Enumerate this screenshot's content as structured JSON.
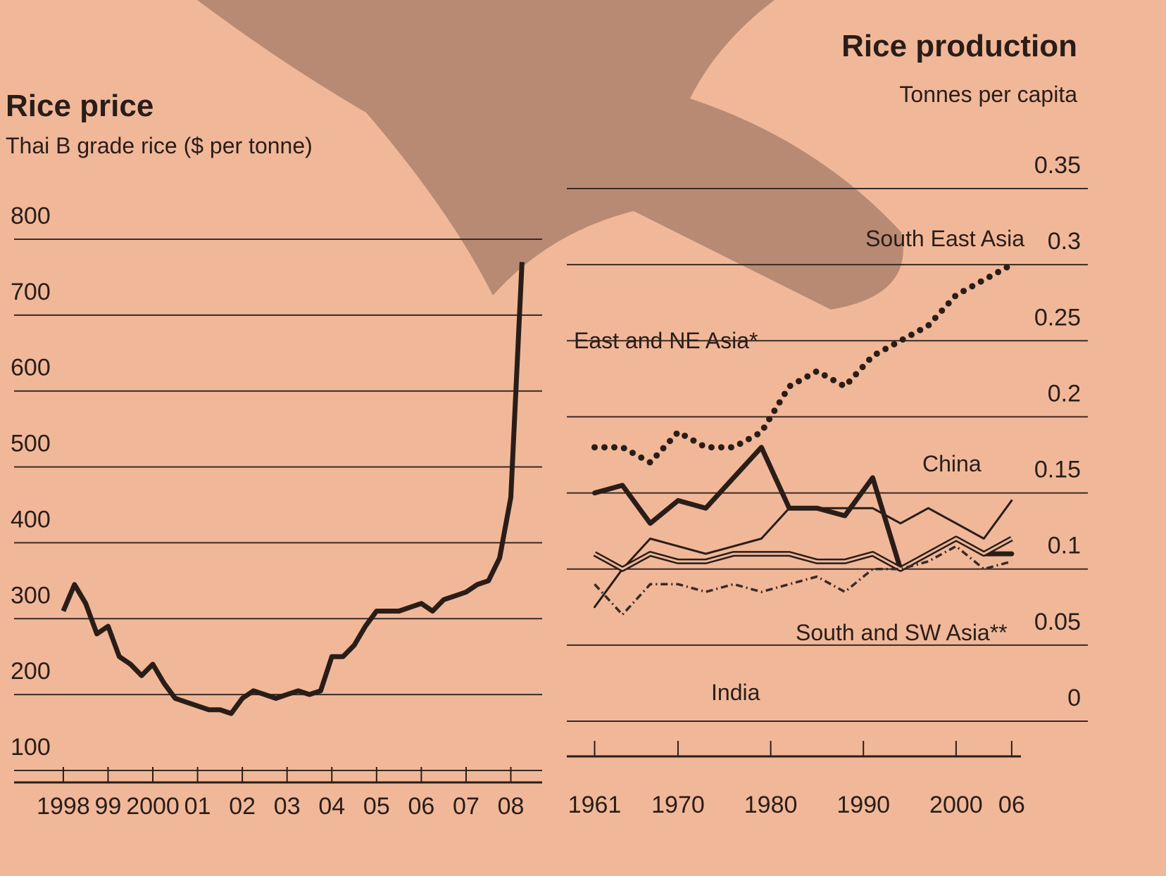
{
  "chart_data": [
    {
      "type": "line",
      "title": "Rice price",
      "subtitle": "Thai B grade rice ($ per tonne)",
      "x": [
        1998.0,
        1998.25,
        1998.5,
        1998.75,
        1999.0,
        1999.25,
        1999.5,
        1999.75,
        2000.0,
        2000.25,
        2000.5,
        2000.75,
        2001.0,
        2001.25,
        2001.5,
        2001.75,
        2002.0,
        2002.25,
        2002.5,
        2002.75,
        2003.0,
        2003.25,
        2003.5,
        2003.75,
        2004.0,
        2004.25,
        2004.5,
        2004.75,
        2005.0,
        2005.25,
        2005.5,
        2005.75,
        2006.0,
        2006.25,
        2006.5,
        2006.75,
        2007.0,
        2007.25,
        2007.5,
        2007.75,
        2008.0,
        2008.25
      ],
      "values": [
        310,
        345,
        320,
        280,
        290,
        250,
        240,
        225,
        240,
        215,
        195,
        190,
        185,
        180,
        180,
        175,
        195,
        205,
        200,
        195,
        200,
        205,
        200,
        205,
        250,
        250,
        265,
        290,
        310,
        310,
        310,
        315,
        320,
        310,
        325,
        330,
        335,
        345,
        350,
        380,
        460,
        770
      ],
      "color": "#2a1d18",
      "xlim": [
        1996.9,
        2008.7
      ],
      "ylim": [
        100,
        800
      ],
      "xticks": [
        1998,
        {
          "value": 1999,
          "label": "99"
        },
        2000,
        {
          "value": 2001,
          "label": "01"
        },
        {
          "value": 2002,
          "label": "02"
        },
        {
          "value": 2003,
          "label": "03"
        },
        {
          "value": 2004,
          "label": "04"
        },
        {
          "value": 2005,
          "label": "05"
        },
        {
          "value": 2006,
          "label": "06"
        },
        {
          "value": 2007,
          "label": "07"
        },
        {
          "value": 2008,
          "label": "08"
        }
      ],
      "yticks": [
        100,
        200,
        300,
        400,
        500,
        600,
        700,
        800
      ],
      "grid": true
    },
    {
      "type": "line",
      "title": "Rice production",
      "subtitle": "Tonnes per capita",
      "x": [
        1961,
        1964,
        1967,
        1970,
        1973,
        1976,
        1979,
        1982,
        1985,
        1988,
        1991,
        1994,
        1997,
        2000,
        2003,
        2006
      ],
      "series": [
        {
          "name": "South East Asia",
          "color": "#2a1d18",
          "style": "dotted",
          "values": [
            0.18,
            0.18,
            0.17,
            0.19,
            0.18,
            0.18,
            0.19,
            0.22,
            0.23,
            0.22,
            0.24,
            0.25,
            0.26,
            0.28,
            0.29,
            0.3
          ]
        },
        {
          "name": "East and NE Asia*",
          "color": "#2a1d18",
          "style": "thick",
          "values": [
            0.15,
            0.155,
            0.13,
            0.145,
            0.14,
            0.16,
            0.18,
            0.14,
            0.14,
            0.135,
            0.16,
            0.1,
            0.11,
            0.12,
            0.11,
            0.11
          ]
        },
        {
          "name": "China",
          "color": "#2a1d18",
          "style": "thin",
          "values": [
            0.075,
            0.1,
            0.12,
            0.115,
            0.11,
            0.115,
            0.12,
            0.14,
            0.14,
            0.14,
            0.14,
            0.13,
            0.14,
            0.13,
            0.12,
            0.145
          ]
        },
        {
          "name": "India",
          "color": "#2a1d18",
          "style": "double",
          "values": [
            0.11,
            0.1,
            0.11,
            0.105,
            0.105,
            0.11,
            0.11,
            0.11,
            0.105,
            0.105,
            0.11,
            0.1,
            0.11,
            0.12,
            0.11,
            0.12
          ]
        },
        {
          "name": "South and SW Asia**",
          "color": "#3a2a24",
          "style": "dashdot",
          "values": [
            0.09,
            0.07,
            0.09,
            0.09,
            0.085,
            0.09,
            0.085,
            0.09,
            0.095,
            0.085,
            0.1,
            0.1,
            0.105,
            0.115,
            0.1,
            0.105
          ]
        }
      ],
      "xlim": [
        1958,
        2007
      ],
      "ylim": [
        0,
        0.35
      ],
      "xticks": [
        1961,
        1970,
        1980,
        1990,
        2000,
        {
          "value": 2006,
          "label": "06"
        }
      ],
      "yticks": [
        0,
        0.05,
        0.1,
        0.15,
        0.2,
        0.25,
        0.3,
        0.35
      ],
      "grid": true
    }
  ]
}
